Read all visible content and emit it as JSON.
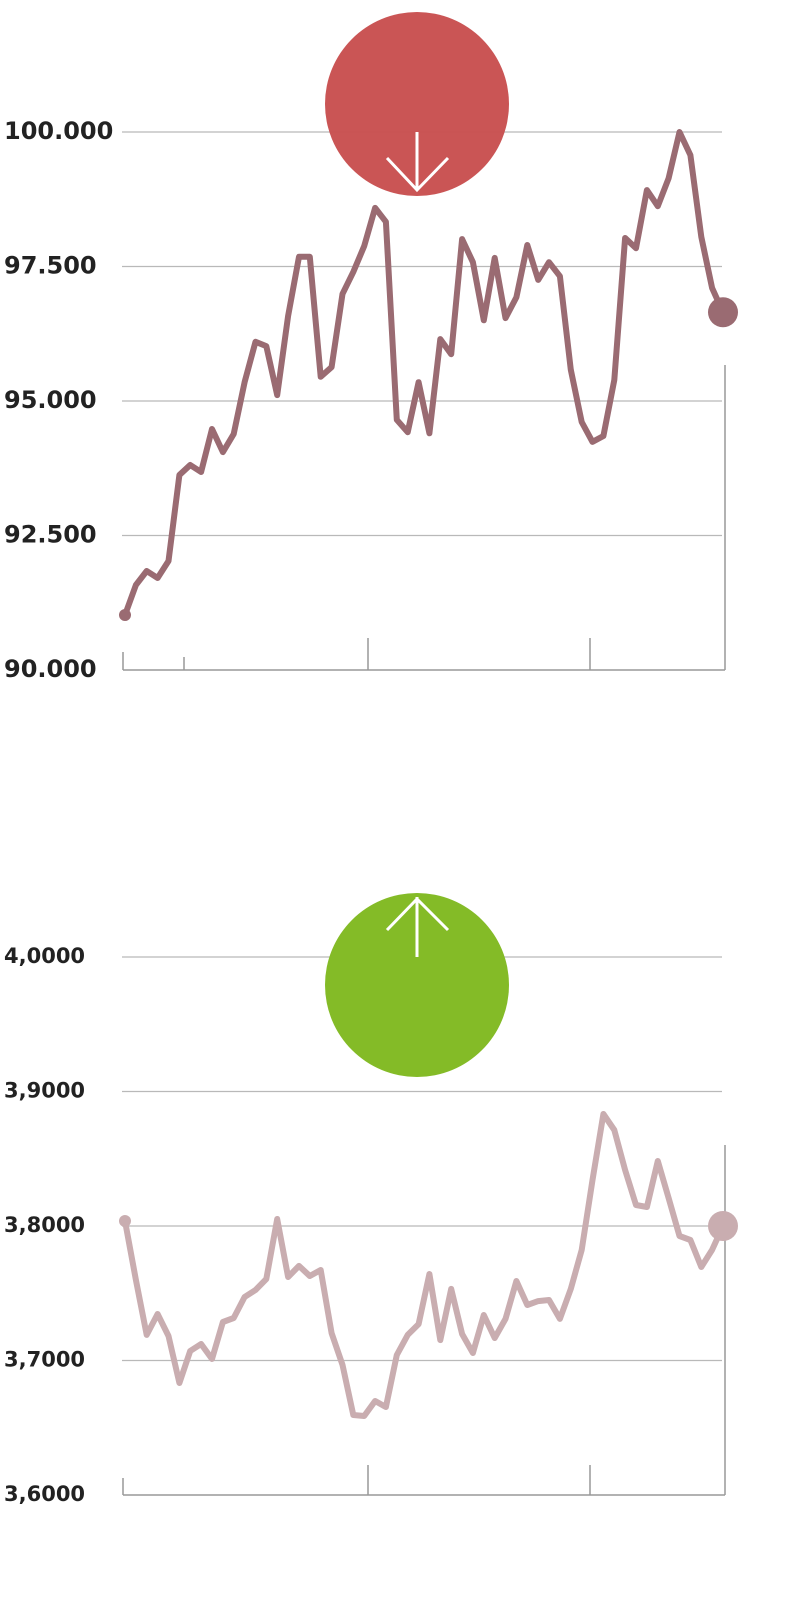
{
  "chart_data": [
    {
      "type": "line",
      "color": "#9a6b72",
      "values": [
        91022,
        91580,
        91840,
        91710,
        92026,
        93624,
        93810,
        93680,
        94480,
        94050,
        94386,
        95350,
        96100,
        96020,
        95110,
        96580,
        97680,
        97680,
        95450,
        95630,
        96990,
        97400,
        97880,
        98590,
        98330,
        94650,
        94420,
        95350,
        94400,
        96150,
        95870,
        98010,
        97580,
        96500,
        97660,
        96540,
        96930,
        97900,
        97250,
        97580,
        97320,
        95580,
        94610,
        94240,
        94350,
        95390,
        98030,
        97840,
        98920,
        98620,
        99140,
        100000,
        99570,
        98050,
        97100,
        96650
      ],
      "ylim": [
        90000,
        100000
      ],
      "yticks": [
        {
          "value": 90000,
          "label": "90.000"
        },
        {
          "value": 92500,
          "label": "92.500"
        },
        {
          "value": 95000,
          "label": "95.000"
        },
        {
          "value": 97500,
          "label": "97.500"
        },
        {
          "value": 100000,
          "label": "100.000"
        }
      ],
      "grid": true
    },
    {
      "type": "line",
      "color": "#c9adb0",
      "values": [
        3.8037,
        3.7599,
        3.719,
        3.7346,
        3.7182,
        3.6833,
        3.7071,
        3.7123,
        3.7011,
        3.7286,
        3.7316,
        3.7472,
        3.7524,
        3.7606,
        3.8052,
        3.7621,
        3.7703,
        3.7628,
        3.7673,
        3.7204,
        3.6967,
        3.6595,
        3.6587,
        3.6699,
        3.6654,
        3.7041,
        3.719,
        3.7271,
        3.7643,
        3.7152,
        3.7532,
        3.7197,
        3.7056,
        3.7338,
        3.7167,
        3.7309,
        3.7591,
        3.7413,
        3.7442,
        3.745,
        3.7309,
        3.7532,
        3.7822,
        3.8342,
        3.8833,
        3.8714,
        3.8416,
        3.8156,
        3.8141,
        3.8483,
        3.8208,
        3.7926,
        3.7896,
        3.7695,
        3.7822,
        3.8
      ],
      "ylim": [
        3.6,
        4.0
      ],
      "yticks": [
        {
          "value": 3.6,
          "label": "3,6000"
        },
        {
          "value": 3.7,
          "label": "3,7000"
        },
        {
          "value": 3.8,
          "label": "3,8000"
        },
        {
          "value": 3.9,
          "label": "3,9000"
        },
        {
          "value": 4.0,
          "label": "4,0000"
        }
      ],
      "grid": true
    }
  ]
}
